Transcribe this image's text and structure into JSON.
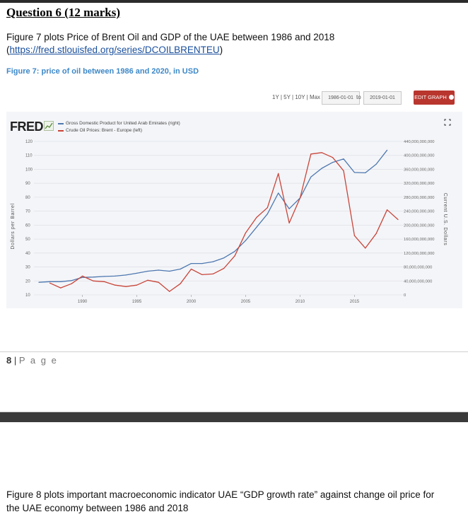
{
  "question": {
    "title": "Question 6 (12 marks)"
  },
  "intro": {
    "line1": "Figure 7 plots Price of Brent Oil and GDP of the UAE between 1986 and 2018",
    "link_open": "(",
    "link": "https://fred.stlouisfed.org/series/DCOILBRENTEU",
    "link_close": ")"
  },
  "figure_caption": "Figure 7:  price of oil between 1986 and 2020, in USD",
  "fred_controls": {
    "range_links": "1Y | 5Y | 10Y | Max",
    "start_date": "1986-01-01",
    "to": "to",
    "end_date": "2019-01-01",
    "edit_button": "EDIT GRAPH"
  },
  "brand": {
    "logo": "FRED"
  },
  "page_footer": {
    "number": "8",
    "sep": " | ",
    "label": "P a g e"
  },
  "next_text": {
    "line1": "Figure 8 plots important macroeconomic indicator UAE “GDP growth rate” against change oil price for",
    "line2": "the UAE economy between 1986 and 2018"
  },
  "colors": {
    "gdp": "#4e78b0",
    "oil": "#c8453a",
    "accent_button": "#b9362f",
    "caption": "#3d88c8"
  },
  "icons": [
    "fred-chart-icon",
    "expand-icon",
    "gear-icon"
  ],
  "chart_data": {
    "type": "line",
    "legend": [
      "Gross Domestic Product for United Arab Emirates (right)",
      "Crude Oil Prices: Brent - Europe (left)"
    ],
    "ylabel_left": "Dollars per Barrel",
    "ylabel_right": "Current U.S. Dollars",
    "left_ticks": [
      120,
      110,
      100,
      90,
      80,
      70,
      60,
      50,
      40,
      30,
      20,
      10
    ],
    "right_ticks": [
      "440,000,000,000",
      "400,000,000,000",
      "360,000,000,000",
      "320,000,000,000",
      "280,000,000,000",
      "240,000,000,000",
      "200,000,000,000",
      "160,000,000,000",
      "120,000,000,000",
      "80,000,000,000",
      "40,000,000,000",
      "0"
    ],
    "x_ticks": [
      "1990",
      "1995",
      "2000",
      "2005",
      "2010",
      "2015"
    ],
    "ylim_left": [
      10,
      120
    ],
    "ylim_right": [
      0,
      440000000000
    ],
    "xlim": [
      1986,
      2019
    ],
    "grid": true,
    "series": [
      {
        "name": "Gross Domestic Product for United Arab Emirates (right)",
        "axis": "right",
        "color": "#4e78b0",
        "x": [
          1986,
          1987,
          1988,
          1989,
          1990,
          1991,
          1992,
          1993,
          1994,
          1995,
          1996,
          1997,
          1998,
          1999,
          2000,
          2001,
          2002,
          2003,
          2004,
          2005,
          2006,
          2007,
          2008,
          2009,
          2010,
          2011,
          2012,
          2013,
          2014,
          2015,
          2016,
          2017,
          2018
        ],
        "values": [
          36000000000,
          38000000000,
          38000000000,
          41000000000,
          50000000000,
          51000000000,
          53000000000,
          54000000000,
          57000000000,
          62000000000,
          68000000000,
          71000000000,
          68000000000,
          74000000000,
          90000000000,
          90000000000,
          95000000000,
          106000000000,
          125000000000,
          156000000000,
          194000000000,
          232000000000,
          292000000000,
          247000000000,
          278000000000,
          338000000000,
          363000000000,
          380000000000,
          390000000000,
          351000000000,
          350000000000,
          375000000000,
          415000000000
        ]
      },
      {
        "name": "Crude Oil Prices: Brent - Europe (left)",
        "axis": "left",
        "color": "#c8453a",
        "x": [
          1987,
          1988,
          1989,
          1990,
          1991,
          1992,
          1993,
          1994,
          1995,
          1996,
          1997,
          1998,
          1999,
          2000,
          2001,
          2002,
          2003,
          2004,
          2005,
          2006,
          2007,
          2008,
          2009,
          2010,
          2011,
          2012,
          2013,
          2014,
          2015,
          2016,
          2017,
          2018,
          2019
        ],
        "values": [
          18.5,
          15,
          18,
          23.5,
          20,
          19.5,
          17,
          16,
          17,
          20.5,
          19,
          12.5,
          18,
          28.5,
          24.5,
          25,
          29,
          38,
          54.5,
          65.5,
          72.5,
          97,
          61.5,
          79.5,
          111,
          112,
          108.5,
          99,
          52.5,
          43.5,
          54,
          71,
          64
        ]
      }
    ]
  }
}
